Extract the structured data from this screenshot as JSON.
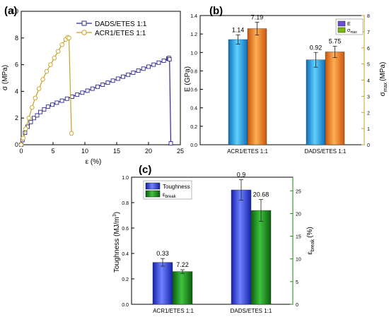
{
  "chart_data": [
    {
      "panel": "(a)",
      "type": "line",
      "xlabel": "ε (%)",
      "ylabel": "σ (MPa)",
      "xlim": [
        0,
        25
      ],
      "ylim": [
        0,
        10
      ],
      "xticks": [
        0,
        5,
        10,
        15,
        20,
        25
      ],
      "yticks": [
        0,
        2,
        4,
        6,
        8,
        10
      ],
      "legend": "top-left",
      "series": [
        {
          "name": "DADS/ETES 1:1",
          "color": "#2e2a8c",
          "marker": "square",
          "x": [
            0,
            0.2,
            0.6,
            1.0,
            1.5,
            2.0,
            2.5,
            3.0,
            3.6,
            4.2,
            4.9,
            5.6,
            6.4,
            7.2,
            8.0,
            8.8,
            9.6,
            10.4,
            11.2,
            12.0,
            12.8,
            13.6,
            14.4,
            15.2,
            16.0,
            16.8,
            17.6,
            18.4,
            19.2,
            20.0,
            20.8,
            21.6,
            22.4,
            23.1,
            23.2,
            23.3,
            23.5
          ],
          "y": [
            0,
            0.35,
            0.9,
            1.35,
            1.7,
            2.0,
            2.2,
            2.45,
            2.65,
            2.85,
            3.0,
            3.15,
            3.3,
            3.45,
            3.6,
            3.75,
            3.9,
            4.05,
            4.2,
            4.35,
            4.5,
            4.65,
            4.8,
            4.95,
            5.1,
            5.25,
            5.4,
            5.55,
            5.7,
            5.85,
            6.0,
            6.15,
            6.3,
            6.45,
            6.5,
            6.4,
            0.1
          ]
        },
        {
          "name": "ACR1/ETES 1:1",
          "color": "#c8a020",
          "marker": "circle",
          "x": [
            0,
            0.3,
            0.7,
            1.2,
            1.7,
            2.2,
            2.8,
            3.4,
            4.0,
            4.6,
            5.2,
            5.8,
            6.4,
            7.0,
            7.3,
            7.5,
            7.9
          ],
          "y": [
            0,
            0.5,
            1.2,
            2.0,
            2.8,
            3.5,
            4.2,
            4.9,
            5.5,
            6.0,
            6.5,
            7.0,
            7.5,
            7.9,
            8.05,
            8.0,
            0.85
          ]
        }
      ]
    },
    {
      "panel": "(b)",
      "type": "bar",
      "categories": [
        "ACR1/ETES 1:1",
        "DADS/ETES 1:1"
      ],
      "ylabel": "E (GPa)",
      "ylabel_right": "σ",
      "ylabel_right_sub": "max",
      "ylabel_right_unit": "(MPa)",
      "ylim": [
        0,
        1.4
      ],
      "yticks": [
        "0.0",
        "0.2",
        "0.4",
        "0.6",
        "0.8",
        "1.0",
        "1.2",
        "1.4"
      ],
      "ylim_right": [
        0,
        8
      ],
      "yticks_right": [
        0,
        1,
        2,
        3,
        4,
        5,
        6,
        7,
        8
      ],
      "legend": "top-right",
      "series": [
        {
          "name": "E",
          "color": "#1ba3e6",
          "values": [
            1.14,
            0.92
          ],
          "errors": [
            0.05,
            0.08
          ],
          "labels": [
            "1.14",
            "0.92"
          ]
        },
        {
          "name": "σ",
          "sub": "max",
          "color": "#f07a1a",
          "values": [
            7.19,
            5.75
          ],
          "errors": [
            0.4,
            0.35
          ],
          "labels": [
            "7.19",
            "5.75"
          ]
        }
      ]
    },
    {
      "panel": "(c)",
      "type": "bar",
      "categories": [
        "ACR1/ETES 1:1",
        "DADS/ETES 1:1"
      ],
      "ylabel": "Toughness (MJ/m",
      "ylabel_sup": "3",
      "ylabel_right": "ε",
      "ylabel_right_sub": "break",
      "ylabel_right_unit": "(%)",
      "ylim": [
        0,
        1.0
      ],
      "yticks": [
        "0.0",
        "0.2",
        "0.4",
        "0.6",
        "0.8",
        "1.0"
      ],
      "ylim_right": [
        0,
        28
      ],
      "yticks_right": [
        0,
        5,
        10,
        15,
        20,
        25
      ],
      "legend": "top-left",
      "series": [
        {
          "name": "Toughness",
          "color": "#2f3fd6",
          "values": [
            0.33,
            0.9
          ],
          "errors": [
            0.03,
            0.08
          ],
          "labels": [
            "0.33",
            "0.9"
          ]
        },
        {
          "name": "ε",
          "sub": "break",
          "color": "#1a8a1a",
          "values": [
            7.22,
            20.68
          ],
          "errors": [
            0.4,
            2.4
          ],
          "labels": [
            "7.22",
            "20.68"
          ]
        }
      ]
    }
  ]
}
